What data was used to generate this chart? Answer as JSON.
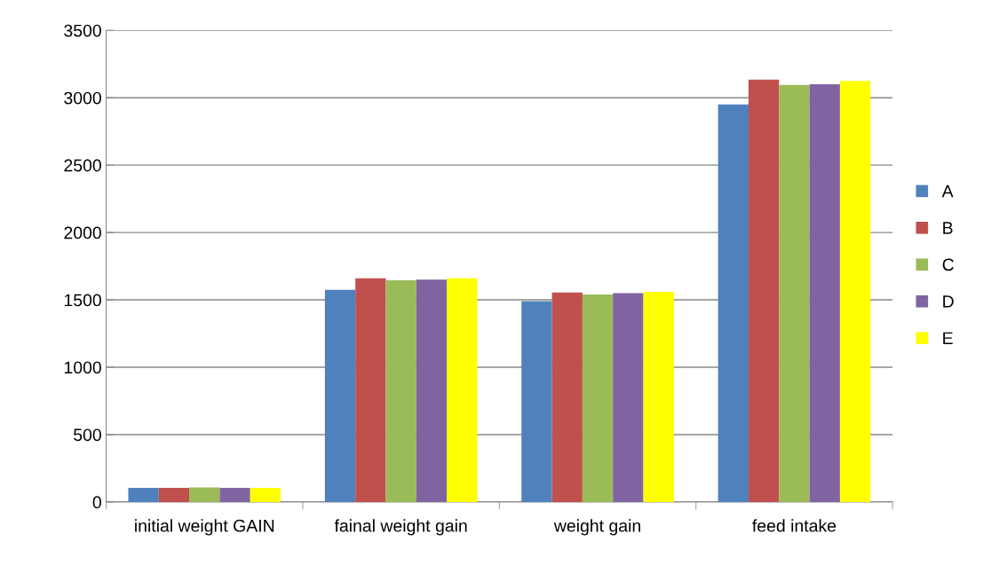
{
  "chart_data": {
    "type": "bar",
    "categories": [
      "initial weight GAIN",
      "fainal weight gain",
      "weight gain",
      "feed intake"
    ],
    "series": [
      {
        "name": "A",
        "color": "#4f81bd",
        "values": [
          105,
          1575,
          1490,
          2950
        ]
      },
      {
        "name": "B",
        "color": "#c0504d",
        "values": [
          105,
          1660,
          1555,
          3135
        ]
      },
      {
        "name": "C",
        "color": "#9bbb59",
        "values": [
          108,
          1645,
          1540,
          3095
        ]
      },
      {
        "name": "D",
        "color": "#8064a2",
        "values": [
          104,
          1650,
          1550,
          3100
        ]
      },
      {
        "name": "E",
        "color": "#ffff00",
        "values": [
          104,
          1660,
          1560,
          3125
        ]
      }
    ],
    "ylim": [
      0,
      3500
    ],
    "yticks": [
      0,
      500,
      1000,
      1500,
      2000,
      2500,
      3000,
      3500
    ],
    "grid": "y",
    "legend": "right"
  }
}
